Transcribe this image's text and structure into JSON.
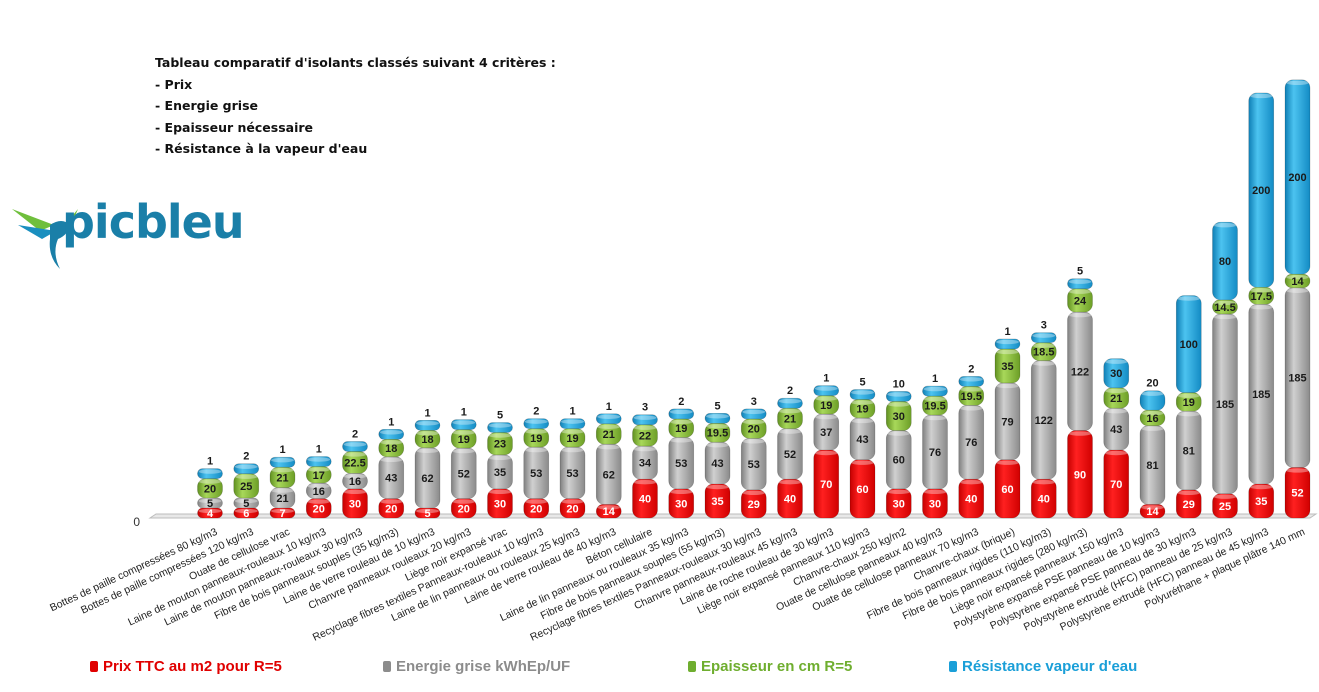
{
  "annotation": {
    "title": "Tableau comparatif d'isolants classés suivant 4 critères :",
    "criteria": [
      "- Prix",
      "- Energie grise",
      "- Epaisseur nécessaire",
      "- Résistance à la vapeur d'eau"
    ]
  },
  "logo": {
    "text": "picbleu"
  },
  "chart_data": {
    "type": "bar",
    "stacked": true,
    "title": "",
    "ylim": [
      0,
      492
    ],
    "y_tick_labels": [
      "0"
    ],
    "categories": [
      "Bottes de paille compressées 80 kg/m3",
      "Bottes de paille compressées 120 kg/m3",
      "Ouate de cellulose vrac",
      "Laine de mouton panneaux-rouleaux 10 kg/m3",
      "Laine de mouton panneaux-rouleaux 30 kg/m3",
      "Fibre de bois panneaux souples (35 kg/m3)",
      "Laine de verre rouleau de 10 kg/m3",
      "Chanvre panneaux rouleaux 20 kg/m3",
      "Liège noir expansé vrac",
      "Recyclage fibres textiles Panneaux-rouleaux 10 kg/m3",
      "Laine de lin panneaux ou rouleaux 25 kg/m3",
      "Laine de verre rouleau de 40 kg/m3",
      "Béton cellulaire",
      "Laine de lin panneaux ou rouleaux 35 kg/m3",
      "Fibre de bois panneaux souples (55 kg/m3)",
      "Recyclage fibres textiles Panneaux-rouleaux 30 kg/m3",
      "Chanvre panneaux-rouleaux 45 kg/m3",
      "Laine de roche rouleau de 30 kg/m3",
      "Liège noir expansé panneaux 110 kg/m3",
      "Chanvre-chaux 250 kg/m2",
      "Ouate de cellulose panneaux 40 kg/m3",
      "Ouate de cellulose panneaux 70 kg/m3",
      "Chanvre-chaux (brique)",
      "Fibre de bois panneaux rigides (110 kg/m3)",
      "Fibre de bois panneaux rigides (280 kg/m3)",
      "Liège noir expansé panneaux 150 kg/m3",
      "Polystyrène expansé PSE panneau de 10 kg/m3",
      "Polystyrène expansé PSE panneau de 30 kg/m3",
      "Polystyrène extrudé (HFC) panneau de 25 kg/m3",
      "Polystyrène extrudé (HFC) panneau de 45 kg/m3",
      "Polyuréthane + plaque plâtre 140 mm"
    ],
    "series": [
      {
        "name": "Prix TTC au m2 pour R=5",
        "color": "#ff0000",
        "values": [
          4,
          6,
          7,
          20,
          30,
          20,
          5,
          20,
          30,
          20,
          20,
          14,
          40,
          30,
          35,
          29,
          40,
          70,
          60,
          30,
          30,
          40,
          60,
          40,
          90,
          70,
          14,
          29,
          25,
          35,
          52
        ]
      },
      {
        "name": "Energie grise kWhEp/UF",
        "color": "#a6a6a6",
        "values": [
          5,
          5,
          21,
          16,
          16,
          43,
          62,
          52,
          35,
          53,
          53,
          62,
          34,
          53,
          43,
          53,
          52,
          37,
          43,
          60,
          76,
          76,
          79,
          122,
          122,
          43,
          81,
          81,
          185,
          185,
          185
        ]
      },
      {
        "name": "Epaisseur en cm R=5",
        "color": "#8cbf3f",
        "values": [
          20,
          25,
          21,
          17,
          22.5,
          18,
          18,
          19,
          23,
          19,
          19,
          21,
          22,
          19,
          19.5,
          20,
          21,
          19,
          19,
          30,
          19.5,
          19.5,
          35,
          18.5,
          24,
          21,
          16,
          19,
          14.5,
          17.5,
          14
        ]
      },
      {
        "name": "Résistance vapeur d'eau",
        "color": "#1ea7df",
        "values": [
          1,
          2,
          1,
          1,
          2,
          1,
          1,
          1,
          5,
          2,
          1,
          1,
          3,
          2,
          5,
          3,
          2,
          1,
          5,
          10,
          1,
          2,
          1,
          3,
          5,
          30,
          20,
          100,
          80,
          200,
          200
        ]
      }
    ],
    "legend_position": "bottom",
    "grid": false
  },
  "colors": {
    "red": "#ff0000",
    "gray": "#a6a6a6",
    "green": "#8cbf3f",
    "blue": "#1ea7df",
    "brand_blue": "#1a7fa8"
  },
  "legend_icons": [
    "red-square-icon",
    "gray-square-icon",
    "green-square-icon",
    "blue-square-icon"
  ]
}
